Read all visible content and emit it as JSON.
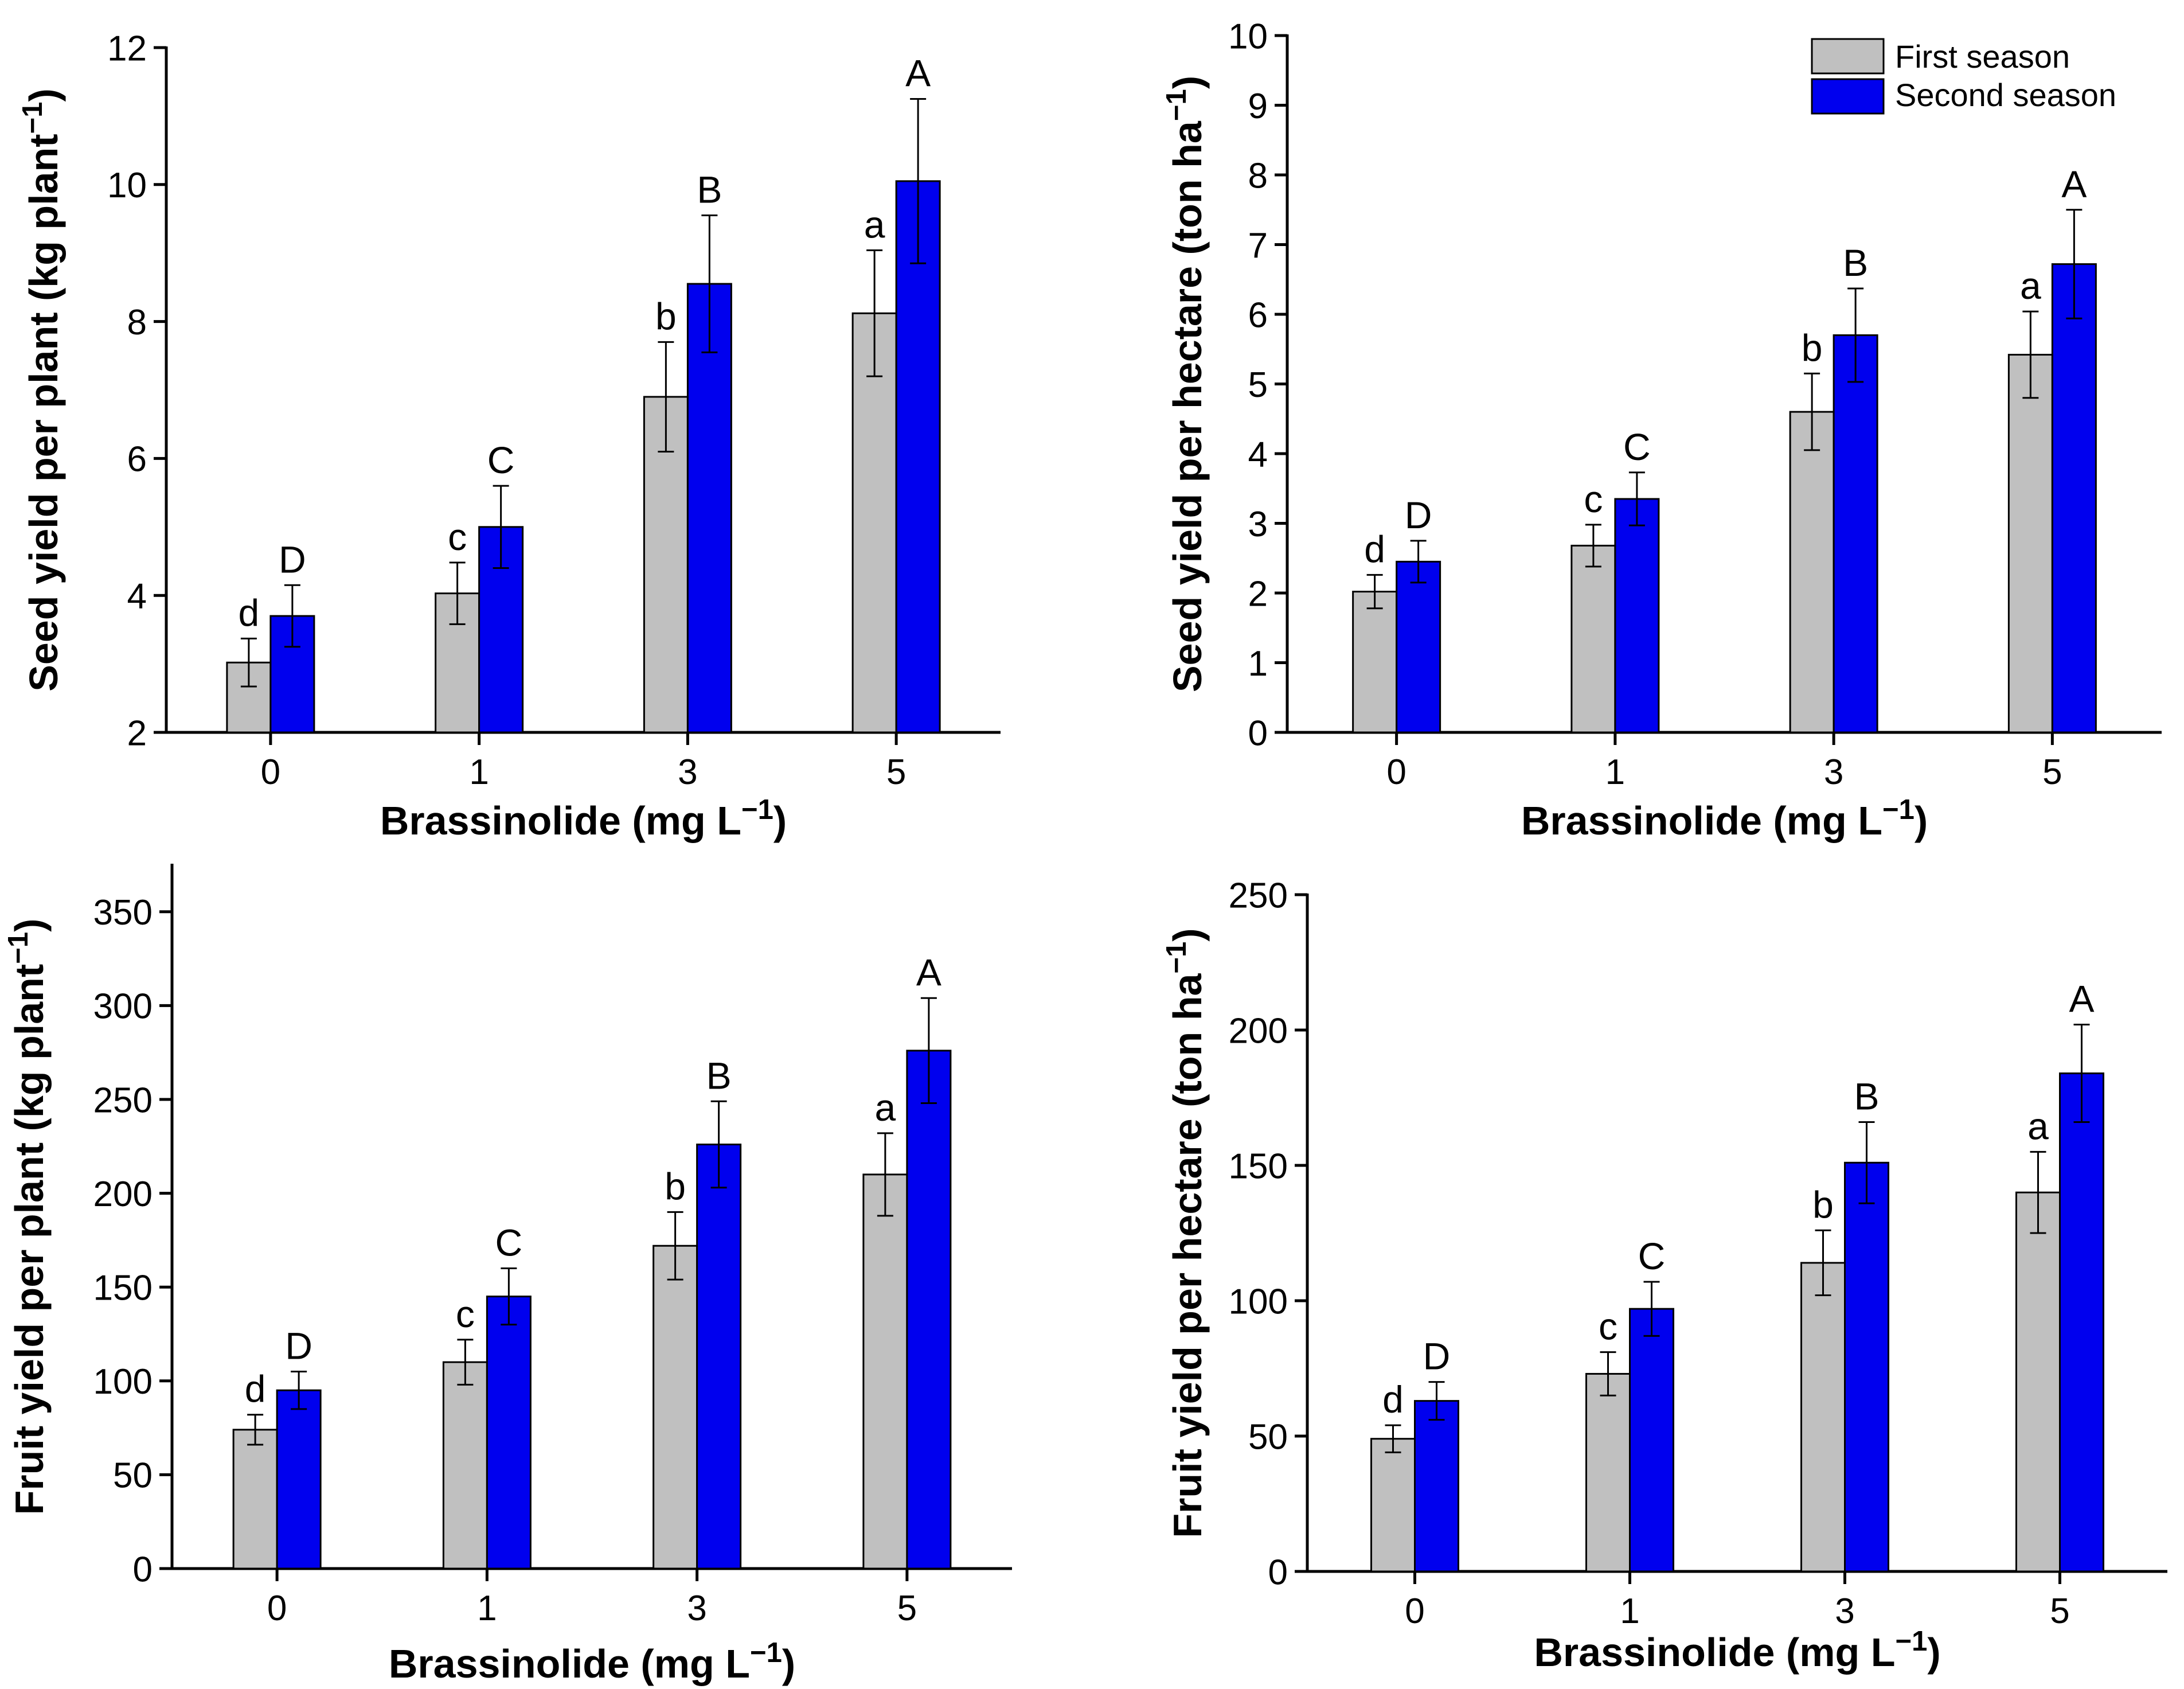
{
  "colors": {
    "first_season": "#c0c0c0",
    "second_season": "#0000ee",
    "axis": "#000000"
  },
  "legend": {
    "first": "First season",
    "second": "Second season",
    "placement": "top-right of top-right panel"
  },
  "chart_data": [
    {
      "type": "bar",
      "categories": [
        "0",
        "1",
        "3",
        "5"
      ],
      "xlabel": "Brassinolide (mg L⁻¹)",
      "ylabel": "Seed yield per plant (kg plant⁻¹)",
      "ylim": [
        2,
        12
      ],
      "yticks": [
        "2",
        "4",
        "6",
        "8",
        "10",
        "12"
      ],
      "series": [
        {
          "name": "First season",
          "values": [
            3.02,
            4.03,
            6.9,
            8.12
          ],
          "errors": [
            0.35,
            0.45,
            0.8,
            0.92
          ],
          "letters": [
            "d",
            "c",
            "b",
            "a"
          ]
        },
        {
          "name": "Second season",
          "values": [
            3.7,
            5.0,
            8.55,
            10.05
          ],
          "errors": [
            0.45,
            0.6,
            1.0,
            1.2
          ],
          "letters": [
            "D",
            "C",
            "B",
            "A"
          ]
        }
      ]
    },
    {
      "type": "bar",
      "categories": [
        "0",
        "1",
        "3",
        "5"
      ],
      "xlabel": "Brassinolide (mg L⁻¹)",
      "ylabel": "Seed yield per hectare (ton ha⁻¹)",
      "ylim": [
        0,
        10
      ],
      "yticks": [
        "0",
        "1",
        "2",
        "3",
        "4",
        "5",
        "6",
        "7",
        "8",
        "9",
        "10"
      ],
      "series": [
        {
          "name": "First season",
          "values": [
            2.02,
            2.68,
            4.6,
            5.42
          ],
          "errors": [
            0.24,
            0.3,
            0.55,
            0.62
          ],
          "letters": [
            "d",
            "c",
            "b",
            "a"
          ]
        },
        {
          "name": "Second season",
          "values": [
            2.45,
            3.35,
            5.7,
            6.72
          ],
          "errors": [
            0.3,
            0.38,
            0.67,
            0.78
          ],
          "letters": [
            "D",
            "C",
            "B",
            "A"
          ]
        }
      ]
    },
    {
      "type": "bar",
      "categories": [
        "0",
        "1",
        "3",
        "5"
      ],
      "xlabel": "Brassinolide (mg L⁻¹)",
      "ylabel": "Fruit yield per plant (kg plant⁻¹)",
      "ylim": [
        0,
        375
      ],
      "yticks": [
        "0",
        "50",
        "100",
        "150",
        "200",
        "250",
        "300",
        "350"
      ],
      "series": [
        {
          "name": "First season",
          "values": [
            74,
            110,
            172,
            210
          ],
          "errors": [
            8,
            12,
            18,
            22
          ],
          "letters": [
            "d",
            "c",
            "b",
            "a"
          ]
        },
        {
          "name": "Second season",
          "values": [
            95,
            145,
            226,
            276
          ],
          "errors": [
            10,
            15,
            23,
            28
          ],
          "letters": [
            "D",
            "C",
            "B",
            "A"
          ]
        }
      ]
    },
    {
      "type": "bar",
      "categories": [
        "0",
        "1",
        "3",
        "5"
      ],
      "xlabel": "Brassinolide (mg L⁻¹)",
      "ylabel": "Fruit yield per hectare (ton ha⁻¹)",
      "ylim": [
        0,
        250
      ],
      "yticks": [
        "0",
        "50",
        "100",
        "150",
        "200",
        "250"
      ],
      "series": [
        {
          "name": "First season",
          "values": [
            49,
            73,
            114,
            140
          ],
          "errors": [
            5,
            8,
            12,
            15
          ],
          "letters": [
            "d",
            "c",
            "b",
            "a"
          ]
        },
        {
          "name": "Second season",
          "values": [
            63,
            97,
            151,
            184
          ],
          "errors": [
            7,
            10,
            15,
            18
          ],
          "letters": [
            "D",
            "C",
            "B",
            "A"
          ]
        }
      ]
    }
  ]
}
